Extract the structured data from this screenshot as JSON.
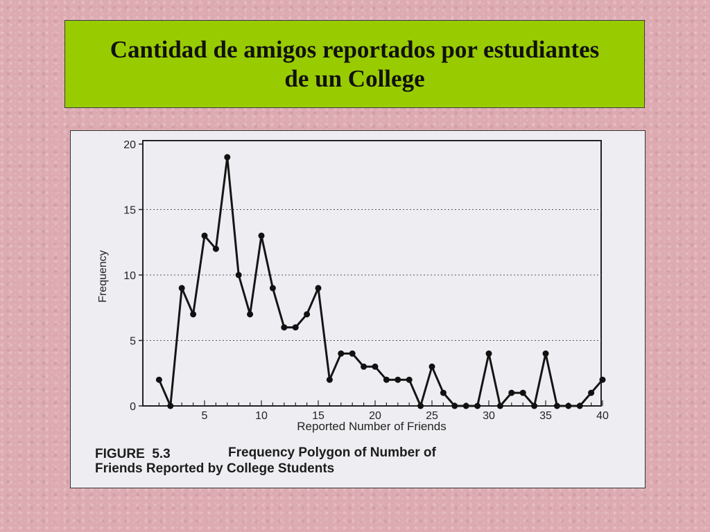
{
  "slide": {
    "title_line1": "Cantidad de amigos reportados por estudiantes",
    "title_line2": "de un College",
    "background_color": "#dcaab0",
    "title_box_color": "#99cc00"
  },
  "figure": {
    "caption_label": "FIGURE  5.3",
    "caption_line1": "Frequency Polygon of Number of",
    "caption_line2": "Friends Reported by College Students"
  },
  "chart_data": {
    "type": "line",
    "title": "",
    "xlabel": "Reported Number of Friends",
    "ylabel": "Frequency",
    "xlim": [
      0,
      40
    ],
    "ylim": [
      0,
      20
    ],
    "x_ticks": [
      5,
      10,
      15,
      20,
      25,
      30,
      35,
      40
    ],
    "y_ticks": [
      0,
      5,
      10,
      15,
      20
    ],
    "gridlines": "dotted horizontal at 5, 10, 15",
    "series": [
      {
        "x": [
          1,
          2,
          3,
          4,
          5,
          6,
          7,
          8,
          9,
          10,
          11,
          12,
          13,
          14,
          15,
          16,
          17,
          18,
          19,
          20,
          21,
          22,
          23,
          24,
          25,
          26,
          27,
          28,
          29,
          30,
          31,
          32,
          33,
          34,
          35,
          36,
          37,
          38,
          39,
          40
        ],
        "values": [
          2,
          0,
          9,
          7,
          13,
          12,
          19,
          10,
          7,
          13,
          9,
          6,
          6,
          7,
          9,
          2,
          4,
          4,
          3,
          3,
          2,
          2,
          2,
          0,
          3,
          1,
          0,
          0,
          0,
          4,
          0,
          1,
          1,
          0,
          4,
          0,
          0,
          0,
          1,
          2
        ]
      }
    ]
  }
}
